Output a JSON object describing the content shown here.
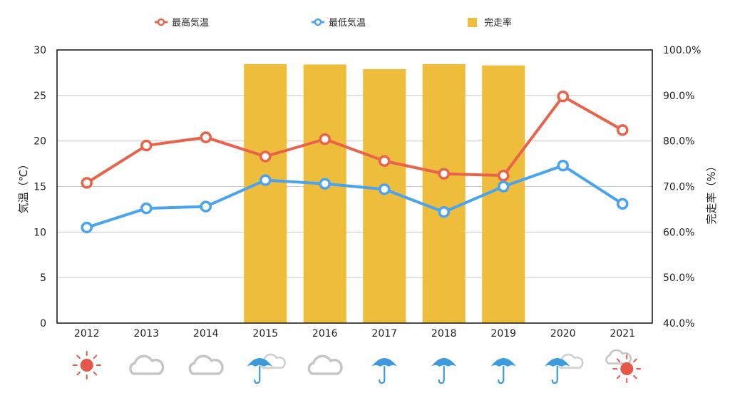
{
  "chart_data": {
    "type": "bar+line",
    "categories": [
      "2012",
      "2013",
      "2014",
      "2015",
      "2016",
      "2017",
      "2018",
      "2019",
      "2020",
      "2021"
    ],
    "series": [
      {
        "name": "最高気温",
        "type": "line",
        "axis": "left",
        "color": "#e8634a",
        "values": [
          15.4,
          19.5,
          20.4,
          18.3,
          20.2,
          17.8,
          16.4,
          16.2,
          24.9,
          21.2
        ]
      },
      {
        "name": "最低気温",
        "type": "line",
        "axis": "left",
        "color": "#4aa3ef",
        "values": [
          10.5,
          12.6,
          12.8,
          15.7,
          15.3,
          14.7,
          12.2,
          15.0,
          17.3,
          13.1
        ]
      },
      {
        "name": "完走率",
        "type": "bar",
        "axis": "right",
        "color": "#efbd3c",
        "values": [
          null,
          null,
          null,
          96.9,
          96.8,
          95.8,
          96.9,
          96.6,
          null,
          null
        ]
      }
    ],
    "ylabel": "気温（℃）",
    "ylabel_right": "完走率（%）",
    "ylim": [
      0,
      30
    ],
    "yticks": [
      "0",
      "5",
      "10",
      "15",
      "20",
      "25",
      "30"
    ],
    "ylim_right": [
      40,
      100
    ],
    "yticks_right": [
      "40.0%",
      "50.0%",
      "60.0%",
      "70.0%",
      "80.0%",
      "90.0%",
      "100.0%"
    ],
    "grid": true,
    "legend_position": "top",
    "weather": [
      "sun",
      "cloud",
      "cloud",
      "rain",
      "cloud",
      "rain",
      "rain",
      "rain",
      "rain",
      "cloud-sun"
    ]
  }
}
